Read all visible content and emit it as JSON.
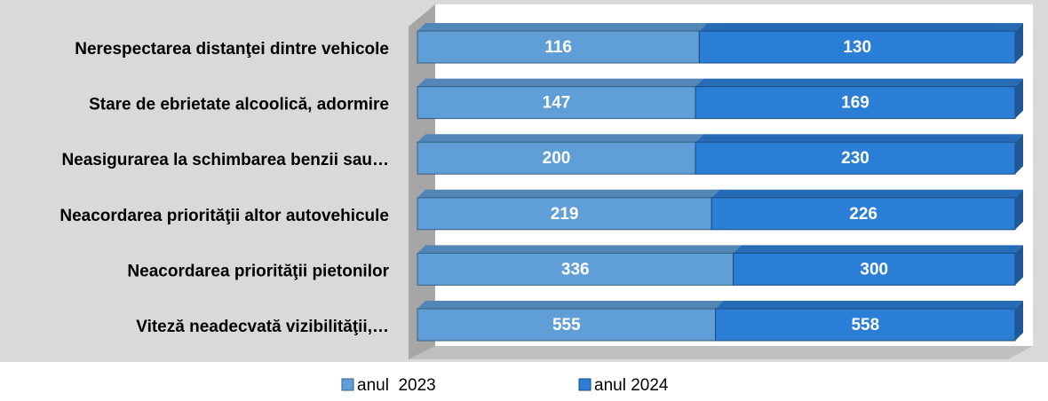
{
  "chart_data": {
    "type": "bar",
    "categories": [
      "Nerespectarea distanţei dintre vehicole",
      "Stare de ebrietate alcoolică, adormire",
      "Neasigurarea la schimbarea benzii sau…",
      "Neacordarea priorităţii altor autovehicule",
      "Neacordarea priorităţii pietonilor",
      "Viteză neadecvată vizibilităţii,…"
    ],
    "series": [
      {
        "name": "anul  2023",
        "color": "#5f9ed6",
        "values": [
          116,
          147,
          200,
          219,
          336,
          555
        ]
      },
      {
        "name": "anul 2024",
        "color": "#2b7ed5",
        "values": [
          130,
          169,
          230,
          226,
          300,
          558
        ]
      }
    ],
    "stacked": "percent",
    "legend": "bottom"
  }
}
